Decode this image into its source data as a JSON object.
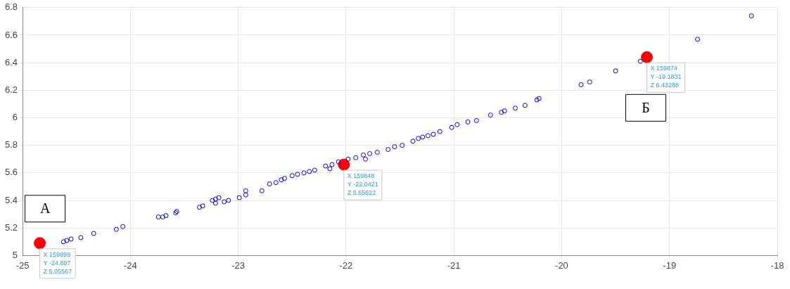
{
  "chart_data": {
    "type": "scatter",
    "marker": "circle",
    "grid": true,
    "xlim": [
      -25,
      -18
    ],
    "xticks": [
      -25,
      -24,
      -23,
      -22,
      -21,
      -20,
      -19,
      -18
    ],
    "ylim": [
      5,
      6.8
    ],
    "yticks": [
      5,
      5.2,
      5.4,
      5.6,
      5.8,
      6,
      6.2,
      6.4,
      6.6,
      6.8
    ],
    "series": [
      {
        "color": "#0000ff",
        "x": [
          -24.62,
          -24.59,
          -24.55,
          -24.46,
          -24.34,
          -24.13,
          -24.07,
          -23.74,
          -23.7,
          -23.67,
          -23.58,
          -23.57,
          -23.36,
          -23.33,
          -23.24,
          -23.21,
          -23.18,
          -23.21,
          -23.13,
          -23.09,
          -22.99,
          -22.93,
          -22.93,
          -22.78,
          -22.71,
          -22.65,
          -22.6,
          -22.57,
          -22.5,
          -22.45,
          -22.39,
          -22.34,
          -22.29,
          -22.19,
          -22.15,
          -22.13,
          -22.07,
          -21.98,
          -21.91,
          -21.84,
          -21.82,
          -21.78,
          -21.71,
          -21.61,
          -21.55,
          -21.48,
          -21.38,
          -21.33,
          -21.29,
          -21.24,
          -21.19,
          -21.13,
          -21.02,
          -20.97,
          -20.87,
          -20.79,
          -20.66,
          -20.56,
          -20.53,
          -20.43,
          -20.34,
          -20.23,
          -20.21,
          -19.82,
          -19.74,
          -19.5,
          -19.27,
          -18.74,
          -18.24
        ],
        "values": [
          5.1,
          5.11,
          5.12,
          5.13,
          5.16,
          5.19,
          5.21,
          5.28,
          5.28,
          5.29,
          5.31,
          5.32,
          5.35,
          5.36,
          5.4,
          5.41,
          5.42,
          5.38,
          5.39,
          5.4,
          5.42,
          5.47,
          5.44,
          5.47,
          5.52,
          5.53,
          5.55,
          5.56,
          5.58,
          5.59,
          5.6,
          5.61,
          5.62,
          5.65,
          5.63,
          5.66,
          5.68,
          5.7,
          5.71,
          5.73,
          5.7,
          5.74,
          5.75,
          5.77,
          5.79,
          5.8,
          5.83,
          5.85,
          5.86,
          5.87,
          5.88,
          5.9,
          5.93,
          5.95,
          5.97,
          5.98,
          6.02,
          6.04,
          6.05,
          6.07,
          6.09,
          6.13,
          6.14,
          6.24,
          6.26,
          6.34,
          6.41,
          6.57,
          6.74
        ]
      },
      {
        "color": "#ff0000",
        "x": [
          -24.84,
          -22.02,
          -19.21
        ],
        "values": [
          5.09,
          5.66,
          6.44
        ]
      }
    ],
    "annotations": [
      {
        "text": "X 159899\nY -24.897\nZ 5.05567",
        "x": -24.84,
        "y": 5.09
      },
      {
        "text": "X 159848\nY -22.0421\nZ 5.65622",
        "x": -22.02,
        "y": 5.66
      },
      {
        "text": "X 159874\nY -19.1831\nZ 6.43288",
        "x": -19.21,
        "y": 6.44
      },
      "А",
      "Б"
    ]
  }
}
